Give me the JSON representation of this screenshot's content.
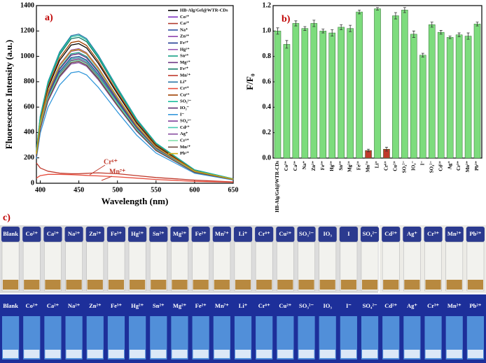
{
  "chart_data": [
    {
      "type": "line",
      "label": "a)",
      "xlabel": "Wavelength (nm)",
      "ylabel": "Fluorescence Intensity (a.u.)",
      "x": [
        395,
        400,
        410,
        425,
        440,
        450,
        460,
        475,
        500,
        525,
        550,
        600,
        650
      ],
      "xlim": [
        395,
        650
      ],
      "xticks": [
        400,
        450,
        500,
        550,
        600,
        650
      ],
      "ylim": [
        0,
        1400
      ],
      "yticks": [
        0,
        200,
        400,
        600,
        800,
        1000,
        1200,
        1400
      ],
      "legend": "upper right",
      "annotations": [
        "Cr⁶⁺",
        "Mn⁷⁺"
      ],
      "series": [
        {
          "name": "HB-Alg/Gel@WTR-CDs",
          "color": "#000000",
          "values": [
            242,
            495,
            748,
            968,
            1089,
            1100,
            1067,
            946,
            704,
            473,
            297,
            99,
            33
          ]
        },
        {
          "name": "Co²⁺",
          "color": "#7b2fbe",
          "values": [
            211,
            432,
            653,
            845,
            950,
            960,
            931,
            826,
            614,
            413,
            259,
            86,
            29
          ]
        },
        {
          "name": "Ca²⁺",
          "color": "#b03a2e",
          "values": [
            233,
            477,
            721,
            933,
            1049,
            1060,
            1028,
            912,
            678,
            456,
            286,
            95,
            32
          ]
        },
        {
          "name": "Na⁺",
          "color": "#2e4fa3",
          "values": [
            224,
            459,
            694,
            898,
            1010,
            1020,
            989,
            877,
            653,
            439,
            275,
            92,
            31
          ]
        },
        {
          "name": "Zn²⁺",
          "color": "#8e44ad",
          "values": [
            233,
            477,
            721,
            933,
            1049,
            1060,
            1028,
            912,
            678,
            456,
            286,
            95,
            32
          ]
        },
        {
          "name": "Fe³⁺",
          "color": "#1f3a93",
          "values": [
            220,
            450,
            680,
            880,
            990,
            1000,
            970,
            860,
            640,
            430,
            270,
            90,
            30
          ]
        },
        {
          "name": "Hg²⁺",
          "color": "#9b59b6",
          "values": [
            217,
            443,
            670,
            867,
            975,
            985,
            955,
            847,
            630,
            424,
            266,
            89,
            30
          ]
        },
        {
          "name": "Sn²⁺",
          "color": "#16a085",
          "values": [
            227,
            464,
            700,
            906,
            1020,
            1030,
            999,
            886,
            659,
            443,
            278,
            93,
            31
          ]
        },
        {
          "name": "Mg²⁺",
          "color": "#6c3483",
          "values": [
            224,
            459,
            694,
            898,
            1010,
            1020,
            989,
            877,
            653,
            439,
            275,
            92,
            31
          ]
        },
        {
          "name": "Fe²⁺",
          "color": "#117a65",
          "values": [
            253,
            518,
            782,
            1012,
            1139,
            1150,
            1116,
            989,
            736,
            495,
            311,
            104,
            35
          ]
        },
        {
          "name": "Mn⁷⁺",
          "color": "#c0392b",
          "values": [
            160,
            120,
            95,
            80,
            75,
            75,
            78,
            82,
            75,
            60,
            45,
            25,
            10
          ]
        },
        {
          "name": "Li⁺",
          "color": "#2874a6",
          "values": [
            259,
            529,
            799,
            1034,
            1163,
            1175,
            1140,
            1011,
            752,
            505,
            317,
            106,
            35
          ]
        },
        {
          "name": "Cr⁶⁺",
          "color": "#e74c3c",
          "values": [
            40,
            60,
            70,
            70,
            68,
            65,
            62,
            58,
            50,
            40,
            30,
            15,
            8
          ]
        },
        {
          "name": "Cu²⁺",
          "color": "#a04000",
          "values": [
            246,
            504,
            762,
            986,
            1109,
            1120,
            1086,
            963,
            717,
            482,
            302,
            101,
            34
          ]
        },
        {
          "name": "SO₃²⁻",
          "color": "#1abc9c",
          "values": [
            256,
            524,
            792,
            1025,
            1153,
            1165,
            1130,
            1002,
            746,
            501,
            315,
            105,
            35
          ]
        },
        {
          "name": "IO₃⁻",
          "color": "#5b2c6f",
          "values": [
            215,
            439,
            663,
            858,
            965,
            975,
            946,
            839,
            624,
            419,
            263,
            88,
            29
          ]
        },
        {
          "name": "I⁻",
          "color": "#3498db",
          "values": [
            194,
            396,
            598,
            774,
            871,
            880,
            854,
            757,
            563,
            378,
            238,
            79,
            26
          ]
        },
        {
          "name": "SO₄²⁻",
          "color": "#7d3c98",
          "values": [
            231,
            473,
            714,
            924,
            1040,
            1050,
            1019,
            903,
            672,
            452,
            284,
            95,
            32
          ]
        },
        {
          "name": "Cd²⁺",
          "color": "#48c9b0",
          "values": [
            218,
            446,
            673,
            871,
            980,
            990,
            960,
            851,
            634,
            426,
            267,
            89,
            30
          ]
        },
        {
          "name": "Ag⁺",
          "color": "#884ea0",
          "values": [
            209,
            428,
            646,
            836,
            941,
            950,
            922,
            817,
            608,
            409,
            257,
            86,
            29
          ]
        },
        {
          "name": "Cr³⁺",
          "color": "#82e0aa",
          "values": [
            213,
            437,
            660,
            854,
            960,
            970,
            941,
            834,
            621,
            417,
            262,
            87,
            29
          ]
        },
        {
          "name": "Mn²⁺",
          "color": "#6d4c41",
          "values": [
            211,
            432,
            653,
            845,
            950,
            960,
            931,
            826,
            614,
            413,
            259,
            86,
            29
          ]
        },
        {
          "name": "Pb²⁺",
          "color": "#d4ac0d",
          "values": [
            232,
            475,
            717,
            928,
            1044,
            1055,
            1023,
            907,
            675,
            454,
            285,
            95,
            32
          ]
        }
      ]
    },
    {
      "type": "bar",
      "label": "b)",
      "ylabel": "F/F₀",
      "categories": [
        "HB-Alg/Gel@WTR-CDs",
        "Co²⁺",
        "Ca²⁺",
        "Na⁺",
        "Zn²⁺",
        "Fe³⁺",
        "Hg²⁺",
        "Sn²⁺",
        "Mg²⁺",
        "Fe²⁺",
        "Mn⁷⁺",
        "Li⁺",
        "Cr⁶⁺",
        "Cu²⁺",
        "SO₃²⁻",
        "IO₃⁻",
        "I⁻",
        "SO₄²⁻",
        "Cd²⁺",
        "Ag⁺",
        "Cr³⁺",
        "Mn²⁺",
        "Pb²⁺"
      ],
      "values": [
        1.0,
        0.895,
        1.06,
        1.02,
        1.06,
        1.0,
        0.985,
        1.03,
        1.02,
        1.15,
        0.06,
        1.175,
        0.07,
        1.12,
        1.165,
        0.975,
        0.81,
        1.05,
        0.99,
        0.95,
        0.97,
        0.96,
        1.055
      ],
      "errors": [
        0.025,
        0.03,
        0.02,
        0.015,
        0.025,
        0.015,
        0.025,
        0.02,
        0.025,
        0.015,
        0.01,
        0.01,
        0.015,
        0.025,
        0.02,
        0.025,
        0.015,
        0.02,
        0.015,
        0.01,
        0.015,
        0.025,
        0.015
      ],
      "colors": [
        "#7ddc7d",
        "#7ddc7d",
        "#7ddc7d",
        "#7ddc7d",
        "#7ddc7d",
        "#7ddc7d",
        "#7ddc7d",
        "#7ddc7d",
        "#7ddc7d",
        "#7ddc7d",
        "#c0392b",
        "#7ddc7d",
        "#c0392b",
        "#7ddc7d",
        "#7ddc7d",
        "#7ddc7d",
        "#7ddc7d",
        "#7ddc7d",
        "#7ddc7d",
        "#7ddc7d",
        "#7ddc7d",
        "#7ddc7d",
        "#7ddc7d"
      ],
      "ylim": [
        0,
        1.2
      ],
      "yticks": [
        {
          "value": 0,
          "label": "0.0"
        },
        0.2,
        0.4,
        0.6,
        0.8,
        {
          "value": 1,
          "label": "1.0"
        },
        1.2
      ]
    }
  ],
  "photo": {
    "label": "c)",
    "top_labels": [
      "Blank",
      "Co²⁺",
      "Ca²⁺",
      "Na²⁺",
      "Zn²⁺",
      "Fe³⁺",
      "Hg²⁺",
      "Sn²⁺",
      "Mg²⁺",
      "Fe²⁺",
      "Mn⁷⁺",
      "Li⁺",
      "Cr⁶⁺",
      "Cu²⁺",
      "SO₃²⁻",
      "IO₃",
      "I",
      "SO₄²⁻",
      "Cd²⁺",
      "Ag⁺",
      "Cr³⁺",
      "Mn²⁺",
      "Pb²⁺"
    ],
    "bottom_labels": [
      "Blank",
      "Co²⁺",
      "Ca²⁺",
      "Na²⁺",
      "Zn²⁺",
      "Fe³⁺",
      "Hg²⁺",
      "Sn²⁺",
      "Mg²⁺",
      "Fe²⁺",
      "Mn⁷⁺",
      "Li⁺",
      "Cr⁶⁺",
      "Cu²⁺",
      "SO₃²⁻",
      "IO₃",
      "I⁻",
      "SO₄²⁻",
      "Cd²⁺",
      "Ag⁺",
      "Cr³⁺",
      "Mn²⁺",
      "Pb²⁺"
    ]
  }
}
